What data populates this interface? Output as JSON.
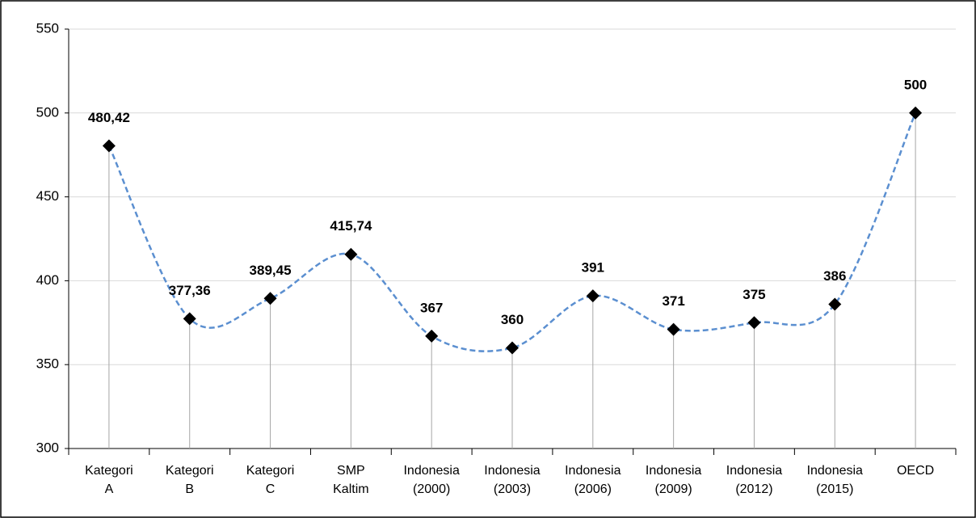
{
  "chart_data": {
    "type": "line",
    "categories": [
      "Kategori A",
      "Kategori B",
      "Kategori C",
      "SMP Kaltim",
      "Indonesia (2000)",
      "Indonesia (2003)",
      "Indonesia (2006)",
      "Indonesia (2009)",
      "Indonesia (2012)",
      "Indonesia (2015)",
      "OECD"
    ],
    "values": [
      480.42,
      377.36,
      389.45,
      415.74,
      367,
      360,
      391,
      371,
      375,
      386,
      500
    ],
    "value_labels": [
      "480,42",
      "377,36",
      "389,45",
      "415,74",
      "367",
      "360",
      "391",
      "371",
      "375",
      "386",
      "500"
    ],
    "color": "#5b8fd0",
    "marker_color": "#000000",
    "ylim": [
      300,
      550
    ],
    "yticks": [
      300,
      350,
      400,
      450,
      500,
      550
    ],
    "grid": true,
    "drop_lines": true
  }
}
